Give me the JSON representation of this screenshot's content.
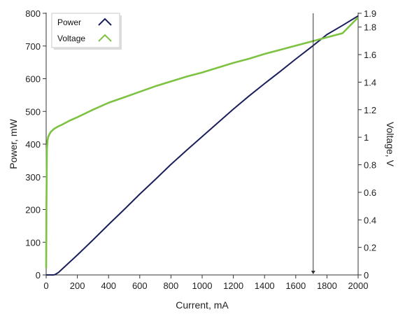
{
  "chart_data": {
    "type": "line",
    "title": "",
    "xlabel": "Current, mA",
    "ylabel": "Power, mW",
    "y2label": "Voltage, V",
    "xlim": [
      0,
      2000
    ],
    "ylim": [
      0,
      800
    ],
    "y2lim": [
      0,
      1.9
    ],
    "xticks": [
      0,
      200,
      400,
      600,
      800,
      1000,
      1200,
      1400,
      1600,
      1800,
      2000
    ],
    "yticks": [
      0,
      100,
      200,
      300,
      400,
      500,
      600,
      700,
      800
    ],
    "y2ticks": [
      0,
      0.2,
      0.4,
      0.6,
      0.8,
      1,
      1.2,
      1.4,
      1.6,
      1.8,
      1.9
    ],
    "grid": false,
    "legend_position": "top-left",
    "cursor_x": 1712,
    "colors": {
      "power": "#1a1f5c",
      "voltage": "#7ec242",
      "cursor": "#333333"
    },
    "series": [
      {
        "name": "Power",
        "axis": "left",
        "x": [
          0,
          50,
          60,
          80,
          100,
          200,
          300,
          400,
          500,
          600,
          700,
          800,
          900,
          1000,
          1100,
          1200,
          1300,
          1400,
          1500,
          1600,
          1700,
          1800,
          1900,
          2000
        ],
        "values": [
          0,
          0,
          2,
          8,
          17,
          61,
          107,
          154,
          200,
          247,
          292,
          338,
          381,
          423,
          465,
          507,
          547,
          585,
          622,
          660,
          697,
          735,
          763,
          792
        ]
      },
      {
        "name": "Voltage",
        "axis": "right",
        "x": [
          0,
          2,
          5,
          8,
          12,
          20,
          30,
          50,
          80,
          100,
          150,
          200,
          300,
          400,
          500,
          600,
          700,
          800,
          900,
          1000,
          1100,
          1200,
          1300,
          1400,
          1500,
          1600,
          1700,
          1800,
          1900,
          2000
        ],
        "values": [
          0.05,
          0.5,
          0.92,
          0.97,
          1.0,
          1.02,
          1.04,
          1.06,
          1.08,
          1.09,
          1.12,
          1.145,
          1.2,
          1.25,
          1.29,
          1.33,
          1.37,
          1.405,
          1.44,
          1.47,
          1.505,
          1.54,
          1.57,
          1.605,
          1.635,
          1.665,
          1.695,
          1.725,
          1.755,
          1.87
        ]
      }
    ]
  }
}
